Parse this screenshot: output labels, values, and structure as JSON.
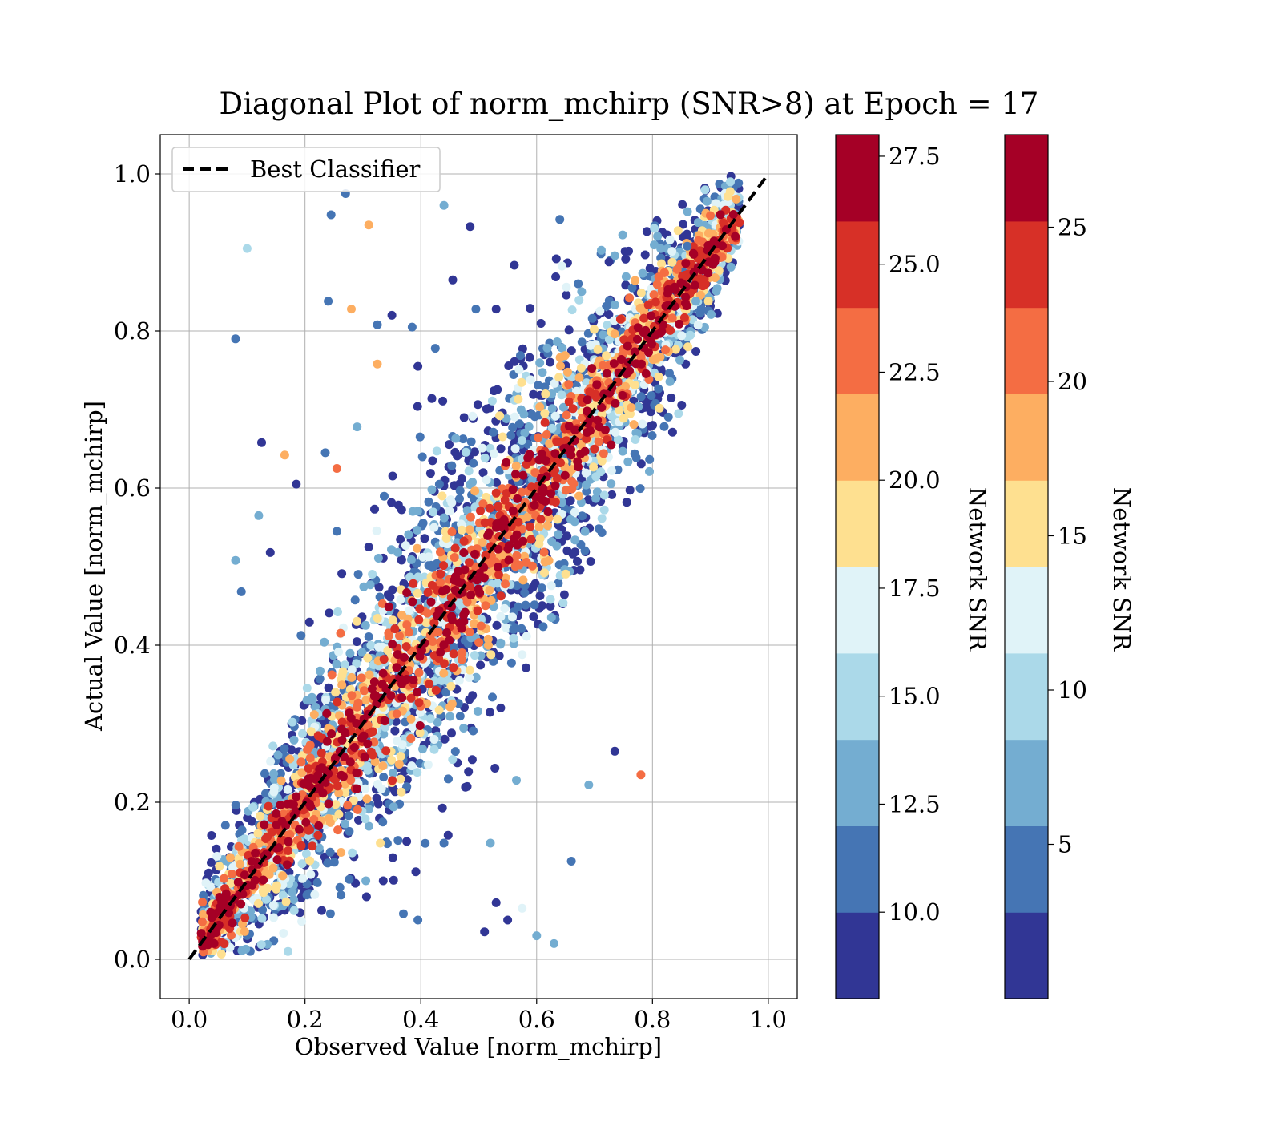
{
  "chart_data": {
    "type": "scatter",
    "title": "Diagonal Plot of norm_mchirp (SNR>8) at Epoch = 17",
    "xlabel": "Observed Value [norm_mchirp]",
    "ylabel": "Actual Value [norm_mchirp]",
    "xlim": [
      -0.05,
      1.05
    ],
    "ylim": [
      -0.05,
      1.05
    ],
    "x_ticks": [
      "0.0",
      "0.2",
      "0.4",
      "0.6",
      "0.8",
      "1.0"
    ],
    "y_ticks": [
      "0.0",
      "0.2",
      "0.4",
      "0.6",
      "0.8",
      "1.0"
    ],
    "grid": true,
    "legend": {
      "placement": "upper-left",
      "entries": [
        "Best Classifier"
      ]
    },
    "reference_line": {
      "name": "Best Classifier",
      "style": "dashed",
      "color": "#000000",
      "x": [
        0.0,
        1.0
      ],
      "y": [
        0.0,
        1.0
      ]
    },
    "colorbars": [
      {
        "label": "Network SNR",
        "range": [
          8.0,
          28.0
        ],
        "ticks": [
          "10.0",
          "12.5",
          "15.0",
          "17.5",
          "20.0",
          "22.5",
          "25.0",
          "27.5"
        ],
        "tick_values": [
          10.0,
          12.5,
          15.0,
          17.5,
          20.0,
          22.5,
          25.0,
          27.5
        ]
      },
      {
        "label": "Network SNR",
        "range": [
          0.0,
          28.0
        ],
        "ticks": [
          "5",
          "10",
          "15",
          "20",
          "25"
        ],
        "tick_values": [
          5,
          10,
          15,
          20,
          25
        ]
      }
    ],
    "colormap": [
      "#313695",
      "#4575b4",
      "#74add1",
      "#abd9e9",
      "#e0f3f8",
      "#fee090",
      "#fdae61",
      "#f46d43",
      "#d73027",
      "#a50026"
    ],
    "point_cloud": {
      "approx_count": 5000,
      "relation": "y ≈ x with scatter growing toward mid range",
      "x_range": [
        0.02,
        0.95
      ],
      "y_range": [
        0.0,
        1.0
      ],
      "snr_range": [
        8.0,
        28.0
      ]
    },
    "outliers": [
      [
        0.1,
        0.905
      ],
      [
        0.08,
        0.79
      ],
      [
        0.27,
        0.975
      ],
      [
        0.245,
        0.948
      ],
      [
        0.31,
        0.935
      ],
      [
        0.44,
        0.96
      ],
      [
        0.485,
        0.933
      ],
      [
        0.24,
        0.838
      ],
      [
        0.28,
        0.828
      ],
      [
        0.325,
        0.808
      ],
      [
        0.35,
        0.82
      ],
      [
        0.385,
        0.805
      ],
      [
        0.455,
        0.865
      ],
      [
        0.495,
        0.828
      ],
      [
        0.53,
        0.828
      ],
      [
        0.425,
        0.778
      ],
      [
        0.325,
        0.758
      ],
      [
        0.395,
        0.755
      ],
      [
        0.29,
        0.678
      ],
      [
        0.125,
        0.658
      ],
      [
        0.165,
        0.642
      ],
      [
        0.185,
        0.605
      ],
      [
        0.12,
        0.565
      ],
      [
        0.235,
        0.645
      ],
      [
        0.255,
        0.625
      ],
      [
        0.08,
        0.508
      ],
      [
        0.09,
        0.468
      ],
      [
        0.14,
        0.518
      ],
      [
        0.255,
        0.545
      ],
      [
        0.31,
        0.525
      ],
      [
        0.56,
        0.42
      ],
      [
        0.735,
        0.265
      ],
      [
        0.78,
        0.235
      ],
      [
        0.69,
        0.222
      ],
      [
        0.66,
        0.125
      ],
      [
        0.63,
        0.02
      ],
      [
        0.6,
        0.03
      ],
      [
        0.51,
        0.035
      ],
      [
        0.44,
        0.148
      ],
      [
        0.395,
        0.05
      ],
      [
        0.37,
        0.058
      ],
      [
        0.52,
        0.148
      ],
      [
        0.53,
        0.072
      ],
      [
        0.55,
        0.05
      ],
      [
        0.575,
        0.065
      ],
      [
        0.48,
        0.22
      ],
      [
        0.565,
        0.228
      ],
      [
        0.305,
        0.1
      ],
      [
        0.33,
        0.148
      ],
      [
        0.335,
        0.1
      ],
      [
        0.86,
        0.908
      ],
      [
        0.875,
        0.838
      ],
      [
        0.845,
        0.695
      ],
      [
        0.725,
        0.888
      ],
      [
        0.64,
        0.942
      ]
    ]
  }
}
